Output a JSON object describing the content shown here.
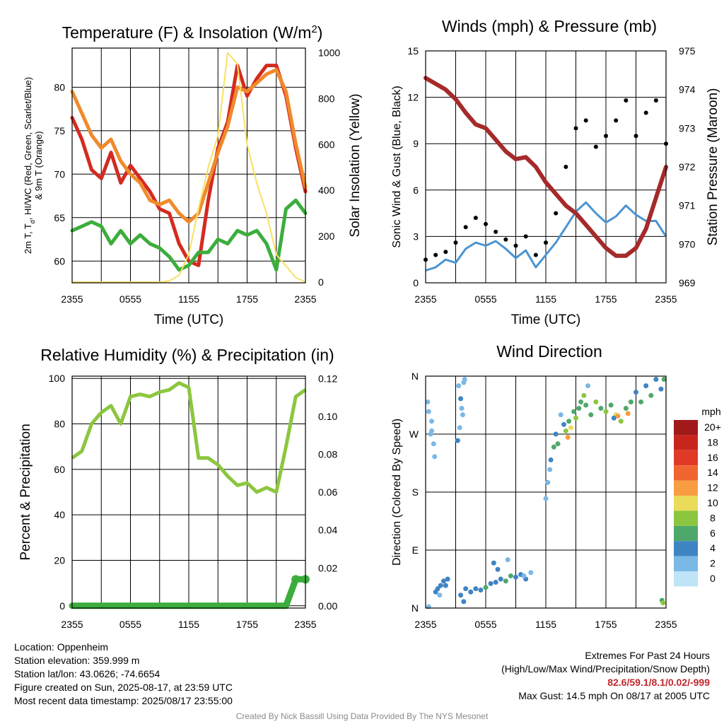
{
  "colors": {
    "red": "#d42a20",
    "green": "#3cad3c",
    "orange": "#f08a2c",
    "yellow": "#f8e060",
    "maroon": "#a52a2a",
    "blue": "#4b94d2",
    "black": "#000000",
    "rh": "#8cc63f",
    "precip": "#3cad3c"
  },
  "chart_data": [
    {
      "type": "line",
      "title": "Temperature (F) & Insolation (W/m²)",
      "xlabel": "Time (UTC)",
      "ylabel": "2m T, Td, HI/WC (Red, Green, Scarlet/Blue) & 9m T (Orange)",
      "y2label": "Solar Insolation (Yellow)",
      "xticks": [
        "2355",
        "0555",
        "1155",
        "1755",
        "2355"
      ],
      "ylim": [
        57.5,
        84.5
      ],
      "yticks": [
        60,
        65,
        70,
        75,
        80
      ],
      "y2lim": [
        -3,
        1020
      ],
      "y2ticks": [
        0,
        200,
        400,
        600,
        800,
        1000
      ],
      "x_hours": [
        0,
        1,
        2,
        3,
        4,
        5,
        6,
        7,
        8,
        9,
        10,
        11,
        12,
        13,
        14,
        15,
        16,
        17,
        18,
        19,
        20,
        21,
        22,
        23,
        24
      ],
      "series": [
        {
          "name": "2m T",
          "axis": "left",
          "color": "red",
          "values": [
            76.5,
            74.0,
            70.5,
            69.5,
            72.5,
            69.0,
            71.0,
            69.5,
            68.0,
            66.0,
            65.5,
            62.0,
            60.0,
            59.5,
            67.0,
            73.0,
            76.0,
            82.5,
            79.0,
            81.0,
            82.5,
            82.5,
            79.0,
            73.0,
            68.0
          ]
        },
        {
          "name": "9m T",
          "axis": "left",
          "color": "orange",
          "values": [
            79.5,
            77.0,
            74.5,
            73.0,
            74.0,
            71.5,
            70.0,
            69.0,
            67.0,
            66.5,
            67.0,
            65.5,
            64.5,
            65.5,
            69.0,
            72.5,
            75.5,
            80.0,
            79.5,
            80.5,
            81.5,
            82.0,
            79.5,
            73.5,
            68.5
          ]
        },
        {
          "name": "Td",
          "axis": "left",
          "color": "green",
          "values": [
            63.5,
            64.0,
            64.5,
            64.0,
            62.0,
            63.5,
            62.0,
            63.0,
            62.0,
            61.5,
            60.5,
            59.0,
            59.5,
            61.0,
            61.0,
            62.5,
            62.0,
            63.5,
            63.0,
            63.5,
            62.0,
            59.0,
            66.0,
            67.0,
            65.5
          ]
        },
        {
          "name": "Solar",
          "axis": "right",
          "color": "yellow",
          "values": [
            0,
            0,
            0,
            0,
            0,
            0,
            0,
            0,
            0,
            0,
            5,
            30,
            120,
            320,
            500,
            640,
            1000,
            950,
            600,
            430,
            300,
            120,
            70,
            20,
            0
          ]
        }
      ]
    },
    {
      "type": "line",
      "title": "Winds (mph) & Pressure (mb)",
      "xlabel": "Time (UTC)",
      "ylabel": "Sonic Wind & Gust (Blue, Black)",
      "y2label": "Station Pressure (Maroon)",
      "xticks": [
        "2355",
        "0555",
        "1155",
        "1755",
        "2355"
      ],
      "ylim": [
        0,
        15
      ],
      "yticks": [
        0,
        3,
        6,
        9,
        12,
        15
      ],
      "y2lim": [
        969,
        975
      ],
      "y2ticks": [
        969,
        970,
        971,
        972,
        973,
        974,
        975
      ],
      "x_hours": [
        0,
        1,
        2,
        3,
        4,
        5,
        6,
        7,
        8,
        9,
        10,
        11,
        12,
        13,
        14,
        15,
        16,
        17,
        18,
        19,
        20,
        21,
        22,
        23,
        24
      ],
      "series": [
        {
          "name": "Pressure",
          "axis": "right",
          "color": "maroon",
          "values": [
            974.3,
            974.15,
            974.0,
            973.75,
            973.4,
            973.1,
            973.0,
            972.7,
            972.4,
            972.2,
            972.25,
            972.0,
            971.6,
            971.3,
            971.0,
            970.8,
            970.5,
            970.2,
            969.9,
            969.7,
            969.7,
            969.9,
            970.4,
            971.2,
            972.0
          ]
        },
        {
          "name": "Wind",
          "axis": "left",
          "color": "blue",
          "values": [
            0.8,
            1.0,
            1.5,
            1.3,
            2.2,
            2.6,
            2.4,
            2.7,
            2.2,
            1.6,
            2.1,
            1.0,
            1.8,
            2.6,
            3.6,
            4.6,
            5.2,
            4.5,
            3.9,
            4.3,
            5.0,
            4.4,
            4.0,
            4.0,
            3.0
          ]
        },
        {
          "name": "Gust",
          "axis": "left",
          "color": "black",
          "values": [
            1.5,
            1.8,
            2.0,
            2.6,
            3.6,
            4.2,
            3.8,
            3.3,
            2.8,
            2.4,
            3.0,
            1.8,
            2.6,
            4.5,
            7.5,
            10.0,
            10.5,
            8.8,
            9.5,
            10.5,
            11.8,
            9.5,
            11.0,
            11.8,
            9.0
          ]
        }
      ]
    },
    {
      "type": "line",
      "title": "Relative Humidity (%) & Precipitation (in)",
      "ylabel": "Percent & Precipitation",
      "xticks": [
        "2355",
        "0555",
        "1155",
        "1755",
        "2355"
      ],
      "ylim": [
        -1,
        101
      ],
      "yticks": [
        0,
        20,
        40,
        60,
        80,
        100
      ],
      "y2lim": [
        -0.00119,
        0.12133
      ],
      "y2ticks": [
        "0.00",
        "0.02",
        "0.04",
        "0.06",
        "0.08",
        "0.10",
        "0.12"
      ],
      "x_hours": [
        0,
        1,
        2,
        3,
        4,
        5,
        6,
        7,
        8,
        9,
        10,
        11,
        12,
        13,
        14,
        15,
        16,
        17,
        18,
        19,
        20,
        21,
        22,
        23,
        24
      ],
      "series": [
        {
          "name": "RH",
          "axis": "left",
          "color": "rh",
          "values": [
            65,
            68,
            80,
            85,
            88,
            80,
            92,
            93,
            92,
            94,
            95,
            98,
            96,
            65,
            65,
            62,
            57,
            53,
            54,
            50,
            52,
            50,
            70,
            92,
            95
          ]
        },
        {
          "name": "Precipitation",
          "axis": "right",
          "color": "precip",
          "values": [
            0,
            0,
            0,
            0,
            0,
            0,
            0,
            0,
            0,
            0,
            0,
            0,
            0,
            0,
            0,
            0,
            0,
            0,
            0,
            0,
            0,
            0,
            0,
            0.014,
            0.014
          ]
        }
      ]
    },
    {
      "type": "scatter",
      "title": "Wind Direction",
      "ylabel": "Direction (Colored By Speed)",
      "xticks": [
        "2355",
        "0555",
        "1155",
        "1755",
        "2355"
      ],
      "yticks": [
        "N",
        "E",
        "S",
        "W",
        "N"
      ],
      "ylim": [
        0,
        360
      ],
      "legend": {
        "title": "mph",
        "labels": [
          "20+",
          "18",
          "16",
          "14",
          "12",
          "10",
          "8",
          "6",
          "4",
          "2",
          "0"
        ],
        "colors": [
          "#a11a1a",
          "#c8261d",
          "#e03a26",
          "#f06530",
          "#f89d42",
          "#eadc5a",
          "#8cc63f",
          "#4ea86a",
          "#3f84c3",
          "#7ab8e6",
          "#bfe3f7"
        ]
      },
      "points": [
        [
          0.2,
          320,
          1
        ],
        [
          0.3,
          305,
          1
        ],
        [
          0.5,
          270,
          1
        ],
        [
          0.6,
          275,
          1
        ],
        [
          0.8,
          255,
          1
        ],
        [
          0.9,
          235,
          1
        ],
        [
          0.6,
          290,
          1
        ],
        [
          0.3,
          2,
          1
        ],
        [
          1.0,
          25,
          2
        ],
        [
          1.2,
          30,
          2
        ],
        [
          1.5,
          35,
          2
        ],
        [
          1.8,
          42,
          2
        ],
        [
          2.0,
          35,
          2
        ],
        [
          1.4,
          20,
          1
        ],
        [
          2.2,
          45,
          2
        ],
        [
          3.3,
          345,
          1
        ],
        [
          3.5,
          325,
          2
        ],
        [
          3.7,
          300,
          1
        ],
        [
          3.8,
          350,
          1
        ],
        [
          3.2,
          260,
          2
        ],
        [
          3.4,
          280,
          1
        ],
        [
          3.6,
          310,
          1
        ],
        [
          3.9,
          355,
          1
        ],
        [
          3.5,
          20,
          2
        ],
        [
          3.8,
          10,
          2
        ],
        [
          4.0,
          30,
          2
        ],
        [
          4.5,
          25,
          2
        ],
        [
          5.0,
          30,
          2
        ],
        [
          5.5,
          28,
          2
        ],
        [
          6.0,
          32,
          3
        ],
        [
          6.5,
          38,
          2
        ],
        [
          7.0,
          40,
          2
        ],
        [
          7.5,
          45,
          2
        ],
        [
          8.0,
          42,
          3
        ],
        [
          8.5,
          50,
          3
        ],
        [
          9.0,
          48,
          2
        ],
        [
          9.5,
          52,
          2
        ],
        [
          10.0,
          45,
          2
        ],
        [
          10.5,
          55,
          1
        ],
        [
          6.8,
          70,
          2
        ],
        [
          7.2,
          60,
          2
        ],
        [
          8.2,
          75,
          1
        ],
        [
          9.8,
          50,
          1
        ],
        [
          12.0,
          170,
          1
        ],
        [
          12.2,
          195,
          1
        ],
        [
          12.5,
          230,
          2
        ],
        [
          12.8,
          250,
          3
        ],
        [
          13.0,
          270,
          2
        ],
        [
          13.2,
          255,
          3
        ],
        [
          13.5,
          300,
          1
        ],
        [
          13.8,
          285,
          2
        ],
        [
          14.0,
          275,
          4
        ],
        [
          14.3,
          290,
          3
        ],
        [
          14.5,
          280,
          5
        ],
        [
          14.8,
          305,
          3
        ],
        [
          15.0,
          295,
          4
        ],
        [
          15.3,
          310,
          3
        ],
        [
          15.5,
          320,
          3
        ],
        [
          15.8,
          330,
          4
        ],
        [
          16.0,
          315,
          3
        ],
        [
          16.5,
          300,
          3
        ],
        [
          17.0,
          320,
          4
        ],
        [
          17.5,
          310,
          3
        ],
        [
          18.0,
          305,
          4
        ],
        [
          18.5,
          315,
          3
        ],
        [
          19.0,
          300,
          5
        ],
        [
          19.5,
          290,
          4
        ],
        [
          20.0,
          310,
          3
        ],
        [
          20.5,
          320,
          3
        ],
        [
          21.0,
          335,
          2
        ],
        [
          21.5,
          320,
          3
        ],
        [
          22.0,
          345,
          2
        ],
        [
          22.5,
          330,
          3
        ],
        [
          23.0,
          355,
          2
        ],
        [
          23.5,
          340,
          2
        ],
        [
          23.8,
          355,
          3
        ],
        [
          12.4,
          215,
          1
        ],
        [
          16.2,
          345,
          1
        ],
        [
          18.8,
          295,
          2
        ],
        [
          23.6,
          12,
          3
        ],
        [
          23.7,
          8,
          4
        ],
        [
          14.2,
          265,
          6
        ],
        [
          19.2,
          298,
          6
        ],
        [
          20.2,
          302,
          6
        ]
      ]
    }
  ],
  "footer_left": {
    "location": "Location: Oppenheim",
    "elevation": "Station elevation: 359.999 m",
    "latlon": "Station lat/lon: 43.0626; -74.6654",
    "created": "Figure created on Sun, 2025-08-17, at 23:59 UTC",
    "recent": "Most recent data timestamp: 2025/08/17 23:55:00"
  },
  "footer_right": {
    "heading": "Extremes For Past 24 Hours",
    "subheading": "(High/Low/Max Wind/Precipitation/Snow Depth)",
    "values": "82.6/59.1/8.1/0.02/-999",
    "max_gust": "Max Gust: 14.5 mph On 08/17 at 2005 UTC"
  },
  "credit": "Created By Nick Bassill Using Data Provided By The NYS Mesonet"
}
